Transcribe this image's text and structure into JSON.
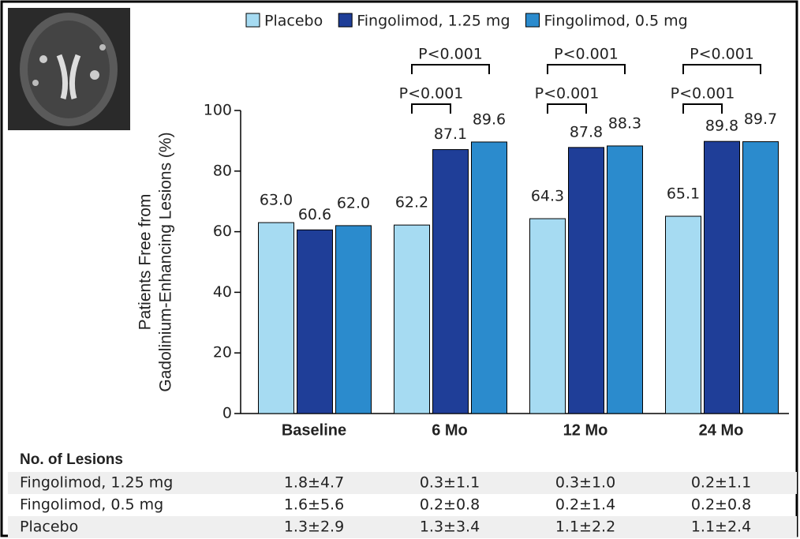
{
  "chart_data": {
    "type": "bar",
    "ylabel": [
      "Patients Free from",
      "Gadolinium-Enhancing Lesions (%)"
    ],
    "categories": [
      "Baseline",
      "6 Mo",
      "12 Mo",
      "24 Mo"
    ],
    "series": [
      {
        "name": "Placebo",
        "color": "#a6dbf2",
        "values": [
          63.0,
          62.2,
          64.3,
          65.1
        ],
        "value_labels": [
          "63.0",
          "62.2",
          "64.3",
          "65.1"
        ]
      },
      {
        "name": "Fingolimod, 1.25 mg",
        "color": "#1f3e98",
        "values": [
          60.6,
          87.1,
          87.8,
          89.8
        ],
        "value_labels": [
          "60.6",
          "87.1",
          "87.8",
          "89.8"
        ]
      },
      {
        "name": "Fingolimod, 0.5 mg",
        "color": "#2b8bcd",
        "values": [
          62.0,
          89.6,
          88.3,
          89.7
        ],
        "value_labels": [
          "62.0",
          "89.6",
          "88.3",
          "89.7"
        ]
      }
    ],
    "annotations": [
      null,
      [
        "P<0.001",
        "P<0.001"
      ],
      [
        "P<0.001",
        "P<0.001"
      ],
      [
        "P<0.001",
        "P<0.001"
      ]
    ],
    "ylim": [
      0,
      100
    ],
    "yticks": [
      0,
      20,
      40,
      60,
      80,
      100
    ],
    "grid": false
  },
  "table": {
    "title": "No. of Lesions",
    "rows": [
      [
        "Fingolimod, 1.25 mg",
        "1.8±4.7",
        "0.3±1.1",
        "0.3±1.0",
        "0.2±1.1"
      ],
      [
        "Fingolimod, 0.5 mg",
        "1.6±5.6",
        "0.2±0.8",
        "0.2±1.4",
        "0.2±0.8"
      ],
      [
        "Placebo",
        "1.3±2.9",
        "1.3±3.4",
        "1.1±2.2",
        "1.1±2.4"
      ]
    ]
  }
}
